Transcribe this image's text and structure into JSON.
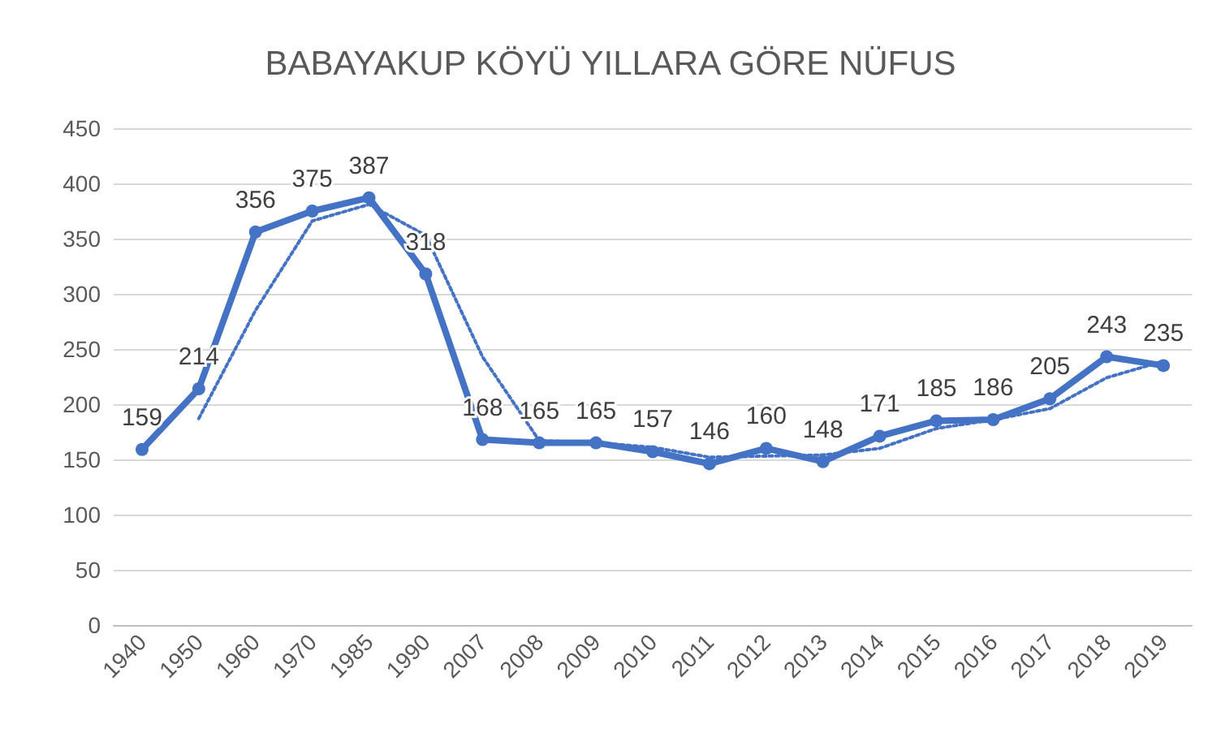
{
  "chart_data": {
    "type": "line",
    "title": "BABAYAKUP KÖYÜ YILLARA GÖRE NÜFUS",
    "categories": [
      "1940",
      "1950",
      "1960",
      "1970",
      "1985",
      "1990",
      "2007",
      "2008",
      "2009",
      "2010",
      "2011",
      "2012",
      "2013",
      "2014",
      "2015",
      "2016",
      "2017",
      "2018",
      "2019"
    ],
    "series": [
      {
        "color": "#4472c4",
        "values": [
          159,
          214,
          356,
          375,
          387,
          318,
          168,
          165,
          165,
          157,
          146,
          160,
          148,
          171,
          185,
          186,
          205,
          243,
          235
        ],
        "value_labels": [
          "159",
          "214",
          "356",
          "375",
          "387",
          "318",
          "168",
          "165",
          "165",
          "157",
          "146",
          "160",
          "148",
          "171",
          "185",
          "186",
          "205",
          "243",
          "235"
        ],
        "marker": "circle",
        "line_style": "solid"
      },
      {
        "color": "#4472c4",
        "values": [
          null,
          187,
          285,
          366,
          381,
          353,
          243,
          167,
          165,
          161,
          152,
          153,
          154,
          160,
          178,
          186,
          196,
          224,
          239
        ],
        "marker": "none",
        "line_style": "dotted"
      }
    ],
    "ylim": [
      0,
      450
    ],
    "yticks": [
      0,
      50,
      100,
      150,
      200,
      250,
      300,
      350,
      400,
      450
    ],
    "grid": "y"
  }
}
